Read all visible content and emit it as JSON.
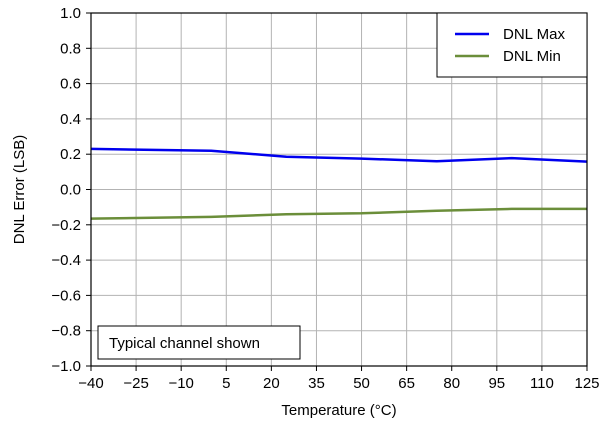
{
  "chart_data": {
    "type": "line",
    "xlabel": "Temperature (°C)",
    "ylabel": "DNL Error (LSB)",
    "xlim": [
      -40,
      125
    ],
    "ylim": [
      -1.0,
      1.0
    ],
    "x_ticks": [
      -40,
      -25,
      -10,
      5,
      20,
      35,
      50,
      65,
      80,
      95,
      110,
      125
    ],
    "x_tick_labels": [
      "−40",
      "−25",
      "−10",
      "5",
      "20",
      "35",
      "50",
      "65",
      "80",
      "95",
      "110",
      "125"
    ],
    "y_ticks": [
      1.0,
      0.8,
      0.6,
      0.4,
      0.2,
      0.0,
      -0.2,
      -0.4,
      -0.6,
      -0.8,
      -1.0
    ],
    "y_tick_labels": [
      "1.0",
      "0.8",
      "0.6",
      "0.4",
      "0.2",
      "0.0",
      "−0.2",
      "−0.4",
      "−0.6",
      "−0.8",
      "−1.0"
    ],
    "grid": true,
    "legend_position": "top-right",
    "annotation": "Typical channel shown",
    "series": [
      {
        "name": "DNL Max",
        "color": "#0000ee",
        "x": [
          -40,
          0,
          25,
          50,
          75,
          100,
          125
        ],
        "y": [
          0.23,
          0.22,
          0.185,
          0.175,
          0.16,
          0.178,
          0.158
        ]
      },
      {
        "name": "DNL Min",
        "color": "#6b8e3a",
        "x": [
          -40,
          0,
          25,
          50,
          75,
          100,
          125
        ],
        "y": [
          -0.165,
          -0.155,
          -0.14,
          -0.135,
          -0.12,
          -0.11,
          -0.11
        ]
      }
    ]
  }
}
